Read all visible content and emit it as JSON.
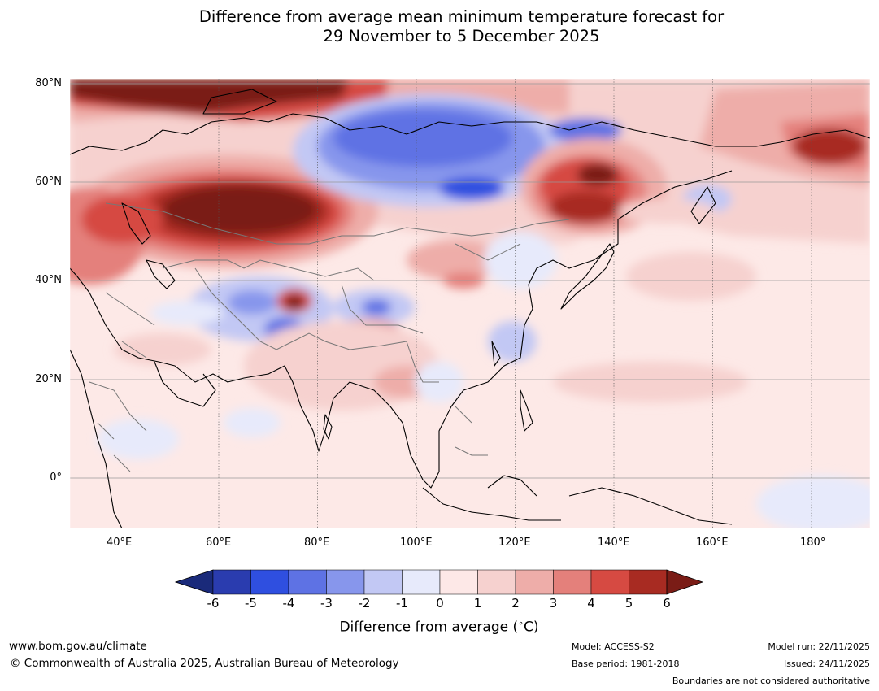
{
  "title": {
    "line1": "Difference from average mean minimum temperature forecast for",
    "line2": "29 November to 5 December 2025"
  },
  "map": {
    "lon_labels": [
      "40°E",
      "60°E",
      "80°E",
      "100°E",
      "120°E",
      "140°E",
      "160°E",
      "180°"
    ],
    "lat_labels": [
      "80°N",
      "60°N",
      "40°N",
      "20°N",
      "0°"
    ]
  },
  "colorbar": {
    "ticks": [
      "-6",
      "-5",
      "-4",
      "-3",
      "-2",
      "-1",
      "0",
      "1",
      "2",
      "3",
      "4",
      "5",
      "6"
    ],
    "label": "Difference from average (°C)",
    "label_prefix": "Difference from average (",
    "label_unit": "°C",
    "label_suffix": ")",
    "colors": [
      "#1a2a7a",
      "#2a3caf",
      "#2f4fe0",
      "#5e72e4",
      "#8796ec",
      "#c2c8f4",
      "#e7eafb",
      "#fde8e7",
      "#f6d1cf",
      "#eeada9",
      "#e4807b",
      "#d64a42",
      "#a82b22",
      "#7a1c16"
    ]
  },
  "footer": {
    "website": "www.bom.gov.au/climate",
    "copyright": "© Commonwealth of Australia 2025, Australian Bureau of Meteorology",
    "model": "Model: ACCESS-S2",
    "base_period": "Base period: 1981-2018",
    "model_run": "Model run: 22/11/2025",
    "issued": "Issued: 24/11/2025",
    "disclaimer": "Boundaries are not considered authoritative"
  }
}
